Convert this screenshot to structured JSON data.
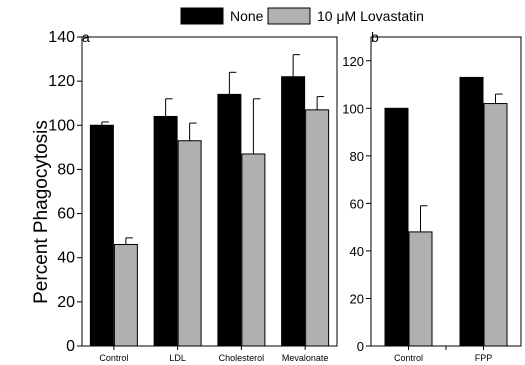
{
  "legend": [
    {
      "label": "None",
      "color": "#000000"
    },
    {
      "label": "10 μM Lovastatin",
      "color": "#b0b0b0"
    }
  ],
  "chart_data": [
    {
      "panel": "a",
      "type": "bar",
      "ylabel": "Percent Phagocytosis",
      "ylim": [
        0,
        140
      ],
      "yticks": [
        0,
        20,
        40,
        60,
        80,
        100,
        120,
        140
      ],
      "categories": [
        "Control",
        "LDL",
        "Cholesterol",
        "Mevalonate"
      ],
      "series": [
        {
          "name": "None",
          "color": "#000000",
          "values": [
            100,
            104,
            114,
            122
          ],
          "errors": [
            1.5,
            8,
            10,
            10
          ]
        },
        {
          "name": "10 μM Lovastatin",
          "color": "#b0b0b0",
          "values": [
            46,
            93,
            87,
            107
          ],
          "errors": [
            3,
            8,
            25,
            6
          ]
        }
      ],
      "grid": false
    },
    {
      "panel": "b",
      "type": "bar",
      "ylim": [
        0,
        130
      ],
      "yticks": [
        0,
        20,
        40,
        60,
        80,
        100,
        120
      ],
      "categories": [
        "Control",
        "FPP"
      ],
      "series": [
        {
          "name": "None",
          "color": "#000000",
          "values": [
            100,
            113
          ],
          "errors": [
            0,
            0
          ]
        },
        {
          "name": "10 μM Lovastatin",
          "color": "#b0b0b0",
          "values": [
            48,
            102
          ],
          "errors": [
            11,
            4
          ]
        }
      ],
      "grid": false
    }
  ]
}
